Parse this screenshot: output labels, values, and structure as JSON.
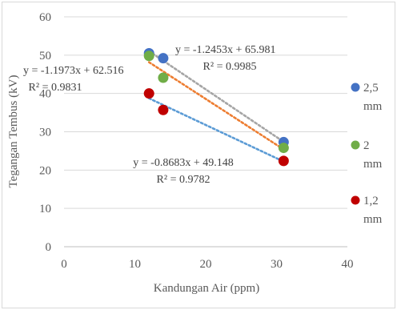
{
  "chart_data": {
    "type": "scatter",
    "title": "",
    "xlabel": "Kandungan Air (ppm)",
    "ylabel": "Tegangan Tembus (kV)",
    "xlim": [
      0,
      40
    ],
    "ylim": [
      0,
      60
    ],
    "x_ticks": [
      0,
      10,
      20,
      30,
      40
    ],
    "y_ticks": [
      0,
      10,
      20,
      30,
      40,
      50,
      60
    ],
    "grid": "horizontal",
    "legend_position": "right",
    "series": [
      {
        "name": "2,5 mm",
        "color": "#4472C4",
        "trend_color": "#A5A5A5",
        "x": [
          12,
          14,
          31
        ],
        "y": [
          50.5,
          49.2,
          27.3
        ],
        "trendline": {
          "slope": -1.2453,
          "intercept": 65.981,
          "equation": "y = -1.2453x + 65.981",
          "r2": "R² = 0.9985"
        }
      },
      {
        "name": "2 mm",
        "color": "#70AD47",
        "trend_color": "#ED7D31",
        "x": [
          12,
          14,
          31
        ],
        "y": [
          49.8,
          44.1,
          25.8
        ],
        "trendline": {
          "slope": -1.1973,
          "intercept": 62.516,
          "equation": "y = -1.1973x + 62.516",
          "r2": "R² = 0.9831"
        }
      },
      {
        "name": "1,2 mm",
        "color": "#C00000",
        "trend_color": "#5B9BD5",
        "x": [
          12,
          14,
          31
        ],
        "y": [
          40.0,
          35.7,
          22.4
        ],
        "trendline": {
          "slope": -0.8683,
          "intercept": 49.148,
          "equation": "y = -0.8683x + 49.148",
          "r2": "R² = 0.9782"
        }
      }
    ],
    "legend": [
      {
        "line1": "2,5",
        "line2": "mm",
        "color": "#4472C4"
      },
      {
        "line1": "2",
        "line2": "mm",
        "color": "#70AD47"
      },
      {
        "line1": "1,2",
        "line2": "mm",
        "color": "#C00000"
      }
    ]
  }
}
